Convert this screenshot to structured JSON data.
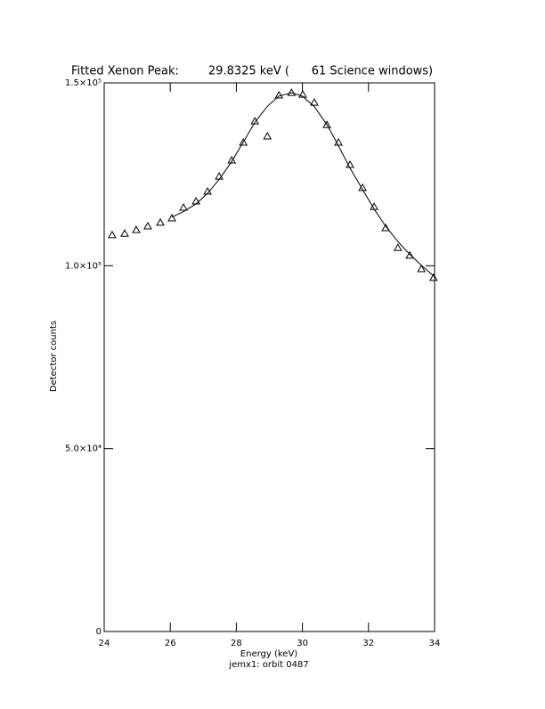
{
  "chart_data": {
    "type": "scatter",
    "title": "Fitted Xenon Peak:        29.8325 keV (      61 Science windows)",
    "x_label": "Energy (keV)",
    "y_label": "Detector counts",
    "footer": "jemx1: orbit 0487",
    "xlim": [
      24,
      34
    ],
    "xticks": [
      24,
      26,
      28,
      30,
      32,
      34
    ],
    "ylim": [
      0,
      150000
    ],
    "yticks": [
      0,
      {
        "value": 50000,
        "label": "5.0×10⁴"
      },
      {
        "value": 100000,
        "label": "1.0×10⁵"
      },
      {
        "value": 150000,
        "label": "1.5×10⁵"
      }
    ],
    "series": [
      {
        "marker": "triangle",
        "color": "#000000",
        "x": [
          24.24,
          24.62,
          24.97,
          25.32,
          25.7,
          26.05,
          26.4,
          26.78,
          27.13,
          27.48,
          27.86,
          28.21,
          28.56,
          28.94,
          29.29,
          29.67,
          30.01,
          30.36,
          30.74,
          31.09,
          31.44,
          31.82,
          32.17,
          32.52,
          32.89,
          33.25,
          33.6,
          33.97
        ],
        "values": [
          108400,
          108800,
          109800,
          110800,
          111800,
          113000,
          115900,
          117600,
          120300,
          124400,
          128800,
          133700,
          139500,
          135400,
          146600,
          147300,
          146800,
          144600,
          138500,
          133700,
          127600,
          121300,
          116100,
          110300,
          104900,
          102800,
          99100,
          96700
        ]
      },
      {
        "marker": "line",
        "color": "#000000",
        "x": [
          26.05,
          26.4,
          26.78,
          27.13,
          27.48,
          27.86,
          28.21,
          28.56,
          28.94,
          29.29,
          29.67,
          30.01,
          30.36,
          30.74,
          31.09,
          31.44,
          31.82,
          32.17,
          32.52,
          32.89,
          33.25,
          33.6,
          34.0
        ],
        "values": [
          113300,
          114800,
          116900,
          119800,
          123600,
          128500,
          133800,
          139200,
          143600,
          146400,
          147300,
          146300,
          143500,
          138600,
          132800,
          126700,
          120800,
          115500,
          110800,
          106600,
          103100,
          100100,
          97000
        ]
      }
    ]
  }
}
